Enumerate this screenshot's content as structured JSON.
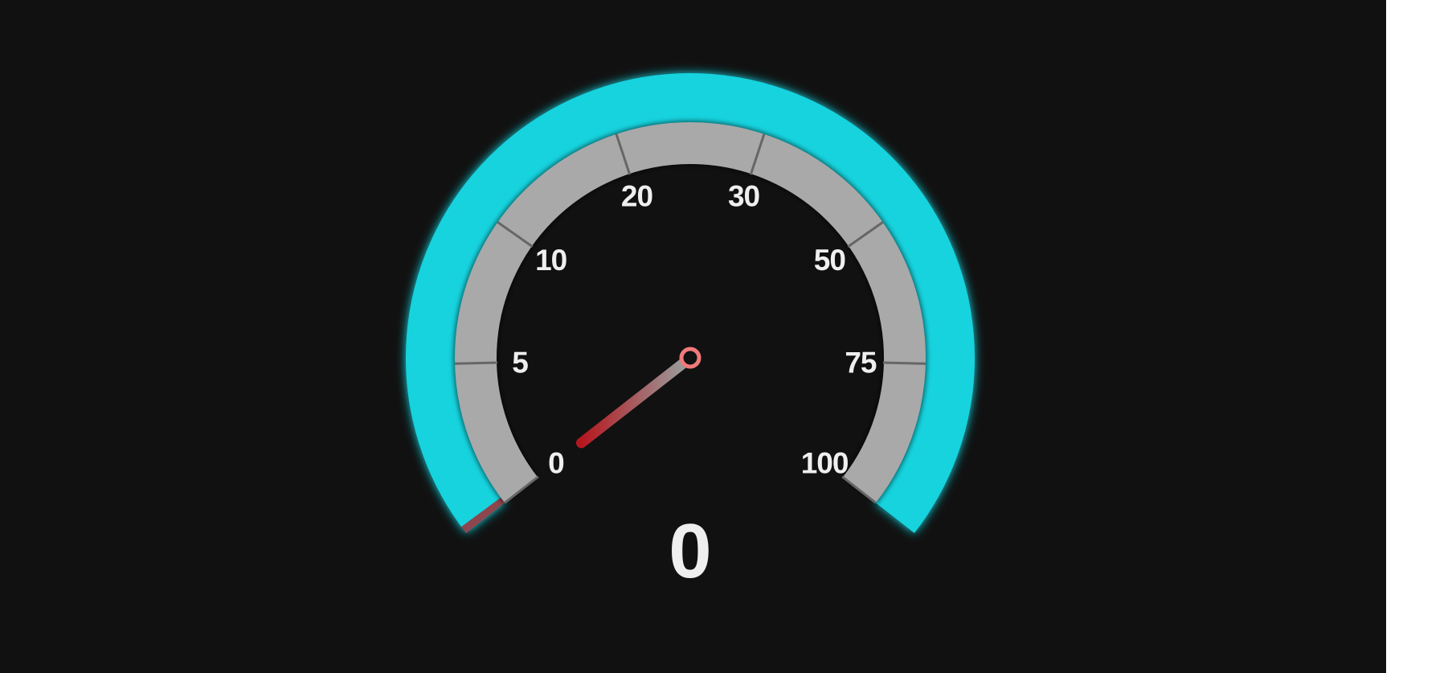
{
  "gauge": {
    "value": 0,
    "readout": "0",
    "max": 100,
    "ticks": [
      {
        "value": 0,
        "label": "0"
      },
      {
        "value": 5,
        "label": "5"
      },
      {
        "value": 10,
        "label": "10"
      },
      {
        "value": 20,
        "label": "20"
      },
      {
        "value": 30,
        "label": "30"
      },
      {
        "value": 50,
        "label": "50"
      },
      {
        "value": 75,
        "label": "75"
      },
      {
        "value": 100,
        "label": "100"
      }
    ]
  },
  "colors": {
    "background": "#111111",
    "outer_arc": "#13d3de",
    "inner_band": "#a9a9a9",
    "needle": "#b5171e",
    "needle_hub": "#f07a7a",
    "text": "#efefef"
  }
}
